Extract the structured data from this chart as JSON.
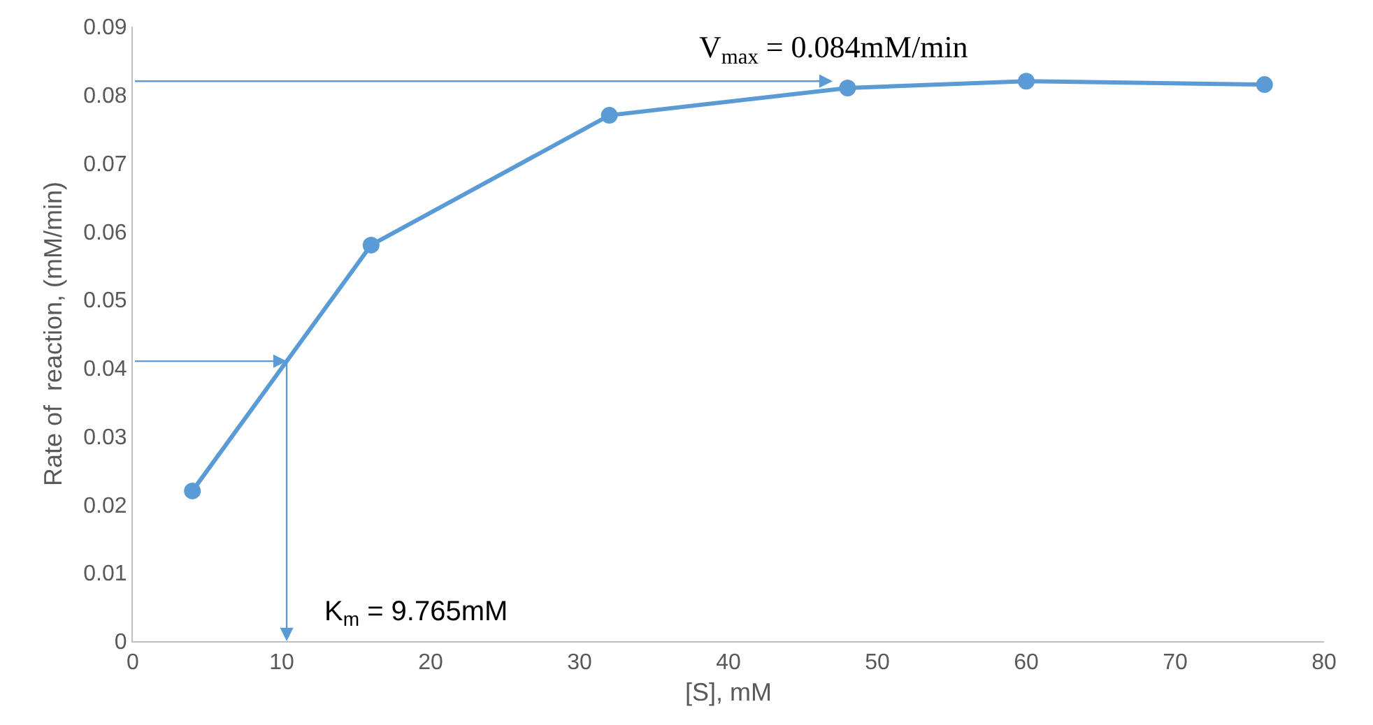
{
  "chart_data": {
    "type": "line",
    "xlabel": "[S], mM",
    "ylabel": "Rate of  reaction, (mM/min)",
    "x": [
      4,
      16,
      32,
      48,
      60,
      76
    ],
    "series": [
      {
        "color": "#5b9bd5",
        "values": [
          0.022,
          0.058,
          0.077,
          0.081,
          0.082,
          0.0815
        ]
      }
    ],
    "xlim": [
      0,
      80
    ],
    "xticks": [
      0,
      10,
      20,
      30,
      40,
      50,
      60,
      70,
      80
    ],
    "ylim": [
      0,
      0.09
    ],
    "yticks": [
      0,
      0.01,
      0.02,
      0.03,
      0.04,
      0.05,
      0.06,
      0.07,
      0.08,
      0.09
    ],
    "marker": "circle",
    "line_style": "solid",
    "annotations": [
      {
        "text": "V$_{max}$ = 0.084mM/min",
        "x": 47,
        "y": 0.082
      },
      "K$_{m}$ = 9.765mM"
    ]
  }
}
